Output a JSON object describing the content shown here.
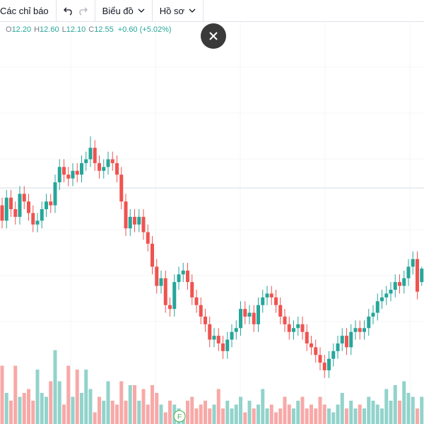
{
  "toolbar": {
    "indicators": "Các chỉ báo",
    "chart": "Biểu đồ",
    "profile": "Hồ sơ"
  },
  "legend": {
    "items": [
      {
        "label": "O",
        "value": "12.20"
      },
      {
        "label": "H",
        "value": "12.60"
      },
      {
        "label": "L",
        "value": "12.10"
      },
      {
        "label": "C",
        "value": "12.55"
      }
    ],
    "change": "+0.60 (+5.02%)"
  },
  "marker": "F",
  "chart_data": {
    "type": "candlestick",
    "open": [
      14.2,
      13.8,
      14.4,
      14.1,
      13.9,
      14.5,
      14.3,
      14.0,
      13.7,
      13.8,
      14.1,
      14.3,
      14.2,
      14.8,
      15.2,
      15.0,
      14.9,
      15.1,
      15.0,
      15.3,
      15.4,
      15.7,
      15.3,
      15.1,
      15.2,
      15.4,
      15.3,
      15.0,
      14.3,
      13.6,
      13.9,
      13.7,
      13.9,
      13.5,
      13.2,
      12.6,
      12.1,
      12.3,
      11.6,
      11.5,
      12.2,
      12.4,
      12.5,
      12.2,
      11.8,
      11.6,
      11.3,
      11.1,
      10.7,
      10.8,
      10.6,
      10.4,
      10.7,
      10.9,
      11.0,
      11.5,
      11.3,
      11.4,
      11.1,
      11.6,
      11.8,
      11.9,
      11.8,
      11.6,
      11.3,
      11.1,
      10.9,
      11.0,
      11.1,
      10.9,
      10.6,
      10.5,
      10.3,
      10.1,
      9.9,
      10.2,
      10.4,
      10.6,
      10.8,
      10.5,
      10.9,
      11.0,
      10.9,
      11.0,
      11.3,
      11.4,
      11.7,
      11.8,
      11.9,
      12.0,
      12.2,
      12.1,
      12.3,
      12.6,
      12.8,
      12.2
    ],
    "high": [
      14.4,
      14.6,
      14.6,
      14.3,
      14.7,
      14.7,
      14.5,
      14.2,
      14.0,
      14.3,
      14.5,
      14.5,
      15.0,
      15.4,
      15.4,
      15.2,
      15.3,
      15.3,
      15.5,
      15.6,
      16.0,
      15.9,
      15.5,
      15.4,
      15.6,
      15.6,
      15.5,
      15.2,
      14.5,
      14.1,
      14.1,
      14.1,
      14.1,
      13.7,
      13.4,
      12.8,
      12.5,
      12.5,
      11.8,
      12.4,
      12.6,
      12.7,
      12.7,
      12.4,
      12.0,
      11.8,
      11.5,
      11.3,
      11.0,
      11.0,
      10.8,
      10.9,
      11.1,
      11.2,
      11.7,
      11.7,
      11.6,
      11.6,
      11.8,
      12.0,
      12.1,
      12.1,
      12.0,
      11.8,
      11.5,
      11.3,
      11.2,
      11.3,
      11.3,
      11.1,
      10.8,
      10.7,
      10.5,
      10.3,
      10.4,
      10.6,
      10.8,
      11.0,
      11.0,
      11.1,
      11.2,
      11.2,
      11.2,
      11.5,
      11.6,
      11.9,
      12.0,
      12.1,
      12.2,
      12.4,
      12.4,
      12.5,
      12.8,
      13.0,
      13.0,
      12.6
    ],
    "low": [
      13.6,
      13.6,
      13.9,
      13.7,
      13.7,
      14.1,
      13.8,
      13.5,
      13.5,
      13.6,
      13.9,
      14.0,
      14.0,
      14.6,
      14.8,
      14.7,
      14.7,
      14.8,
      14.8,
      15.1,
      15.2,
      15.1,
      14.9,
      14.9,
      15.0,
      15.1,
      14.8,
      14.1,
      13.4,
      13.4,
      13.5,
      13.5,
      13.3,
      13.0,
      12.4,
      11.9,
      11.9,
      11.4,
      11.3,
      11.3,
      12.0,
      12.2,
      12.0,
      11.6,
      11.4,
      11.1,
      10.9,
      10.5,
      10.5,
      10.4,
      10.2,
      10.2,
      10.5,
      10.7,
      10.8,
      11.1,
      11.1,
      10.9,
      10.9,
      11.4,
      11.6,
      11.6,
      11.4,
      11.1,
      10.9,
      10.7,
      10.7,
      10.8,
      10.7,
      10.4,
      10.3,
      10.1,
      9.9,
      9.7,
      9.7,
      10.0,
      10.2,
      10.4,
      10.3,
      10.3,
      10.7,
      10.7,
      10.7,
      10.8,
      11.1,
      11.2,
      11.5,
      11.6,
      11.7,
      11.8,
      11.9,
      11.9,
      12.1,
      12.4,
      11.75,
      12.1
    ],
    "close": [
      13.8,
      14.4,
      14.1,
      13.9,
      14.5,
      14.3,
      14.0,
      13.7,
      13.8,
      14.1,
      14.3,
      14.2,
      14.8,
      15.2,
      15.0,
      14.9,
      15.1,
      15.0,
      15.3,
      15.4,
      15.7,
      15.3,
      15.1,
      15.2,
      15.4,
      15.3,
      15.0,
      14.3,
      13.6,
      13.9,
      13.7,
      13.9,
      13.5,
      13.2,
      12.6,
      12.1,
      12.3,
      11.6,
      11.5,
      12.2,
      12.4,
      12.5,
      12.2,
      11.8,
      11.6,
      11.3,
      11.1,
      10.7,
      10.8,
      10.6,
      10.4,
      10.7,
      10.9,
      11.0,
      11.5,
      11.3,
      11.4,
      11.1,
      11.6,
      11.8,
      11.9,
      11.8,
      11.6,
      11.3,
      11.1,
      10.9,
      11.0,
      11.1,
      10.9,
      10.6,
      10.5,
      10.3,
      10.1,
      9.9,
      10.2,
      10.4,
      10.6,
      10.8,
      10.5,
      10.9,
      11.0,
      10.9,
      11.0,
      11.3,
      11.4,
      11.7,
      11.8,
      11.9,
      12.0,
      12.2,
      12.1,
      12.3,
      12.6,
      12.8,
      11.95,
      12.55
    ],
    "volume": [
      75,
      40,
      30,
      75,
      35,
      40,
      45,
      30,
      70,
      40,
      35,
      55,
      95,
      55,
      25,
      75,
      35,
      70,
      40,
      70,
      45,
      15,
      35,
      30,
      55,
      30,
      25,
      55,
      30,
      50,
      50,
      30,
      45,
      25,
      50,
      40,
      25,
      15,
      30,
      25,
      20,
      15,
      30,
      35,
      20,
      25,
      30,
      20,
      25,
      45,
      20,
      30,
      20,
      25,
      35,
      15,
      30,
      20,
      25,
      45,
      20,
      25,
      15,
      20,
      35,
      25,
      20,
      30,
      35,
      20,
      25,
      20,
      35,
      25,
      20,
      15,
      25,
      40,
      20,
      30,
      20,
      25,
      20,
      35,
      30,
      25,
      20,
      45,
      30,
      50,
      30,
      55,
      40,
      35,
      20,
      35
    ],
    "ylim": [
      8.5,
      19
    ],
    "y2lim": [
      0,
      100
    ],
    "up_color": "#26a69a",
    "down_color": "#ef5350",
    "volume_up_color": "#92d3cb",
    "volume_down_color": "#f7a9a7"
  }
}
